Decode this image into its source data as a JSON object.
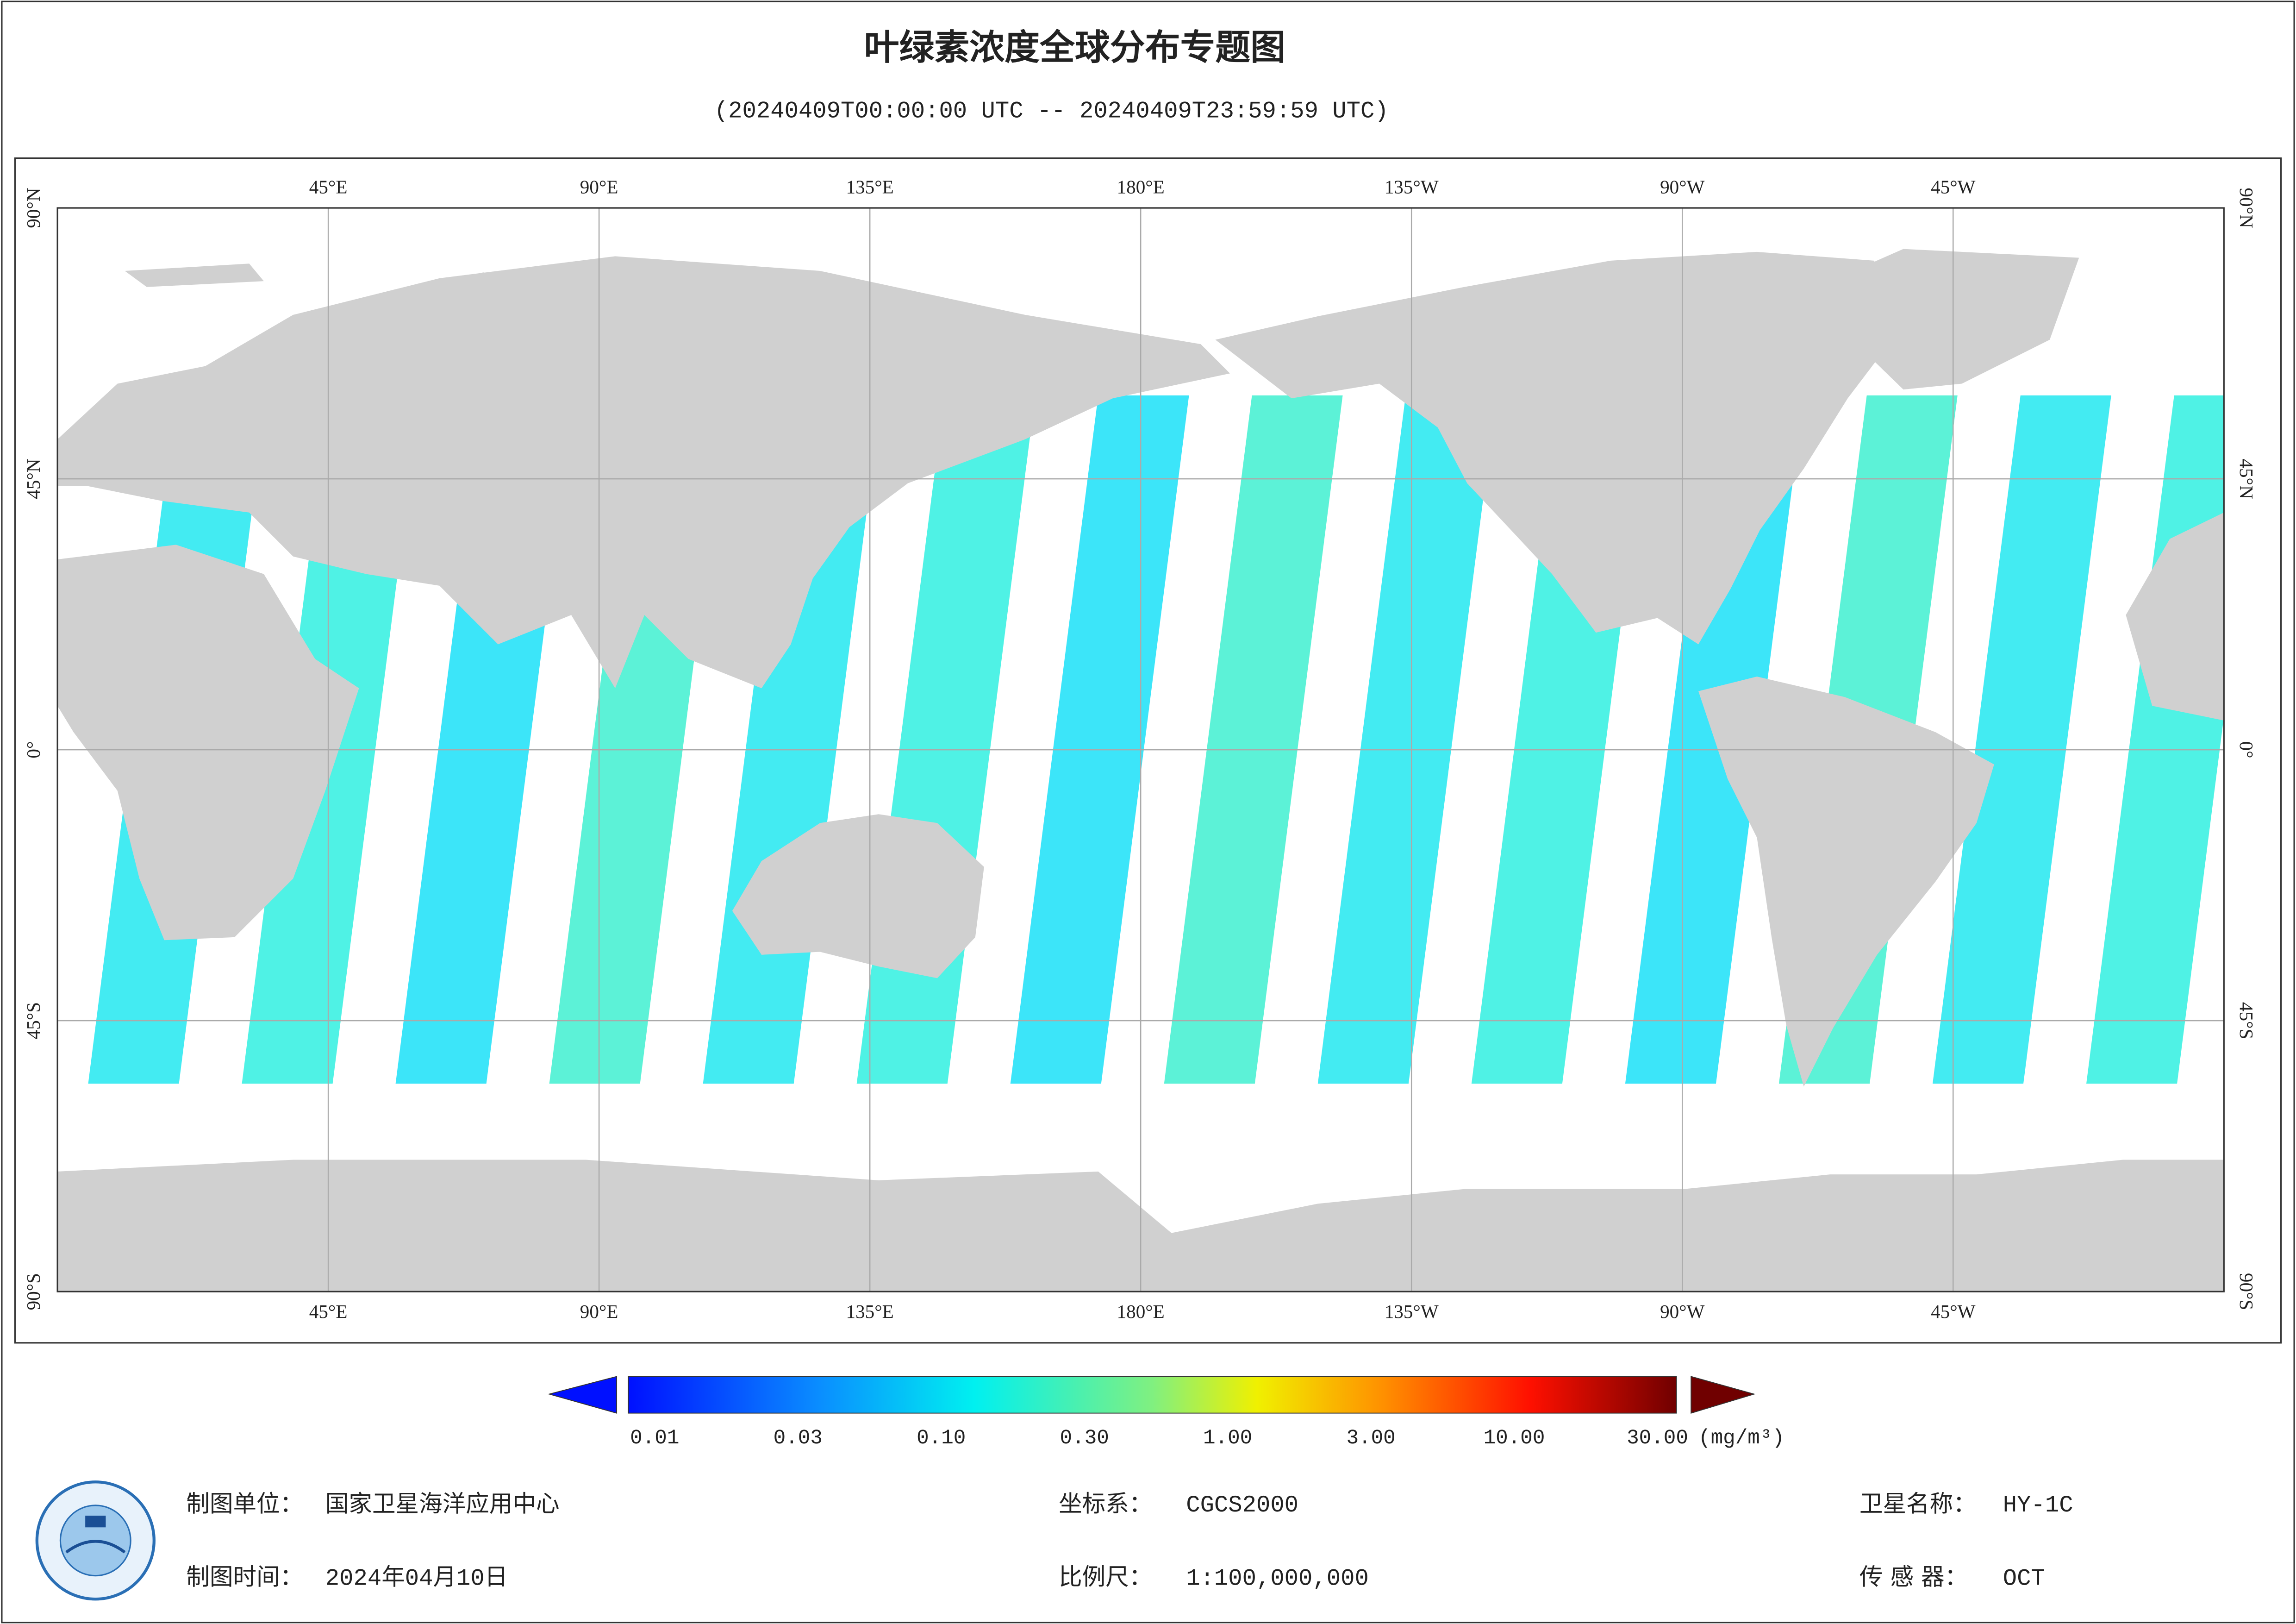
{
  "title": "叶绿素浓度全球分布专题图",
  "subtitle": "(20240409T00:00:00 UTC -- 20240409T23:59:59 UTC)",
  "map": {
    "lon_labels": [
      "45°E",
      "90°E",
      "135°E",
      "180°E",
      "135°W",
      "90°W",
      "45°W"
    ],
    "lat_labels": [
      "90°N",
      "45°N",
      "0°",
      "45°S",
      "90°S"
    ]
  },
  "colorbar": {
    "labels": [
      "0.01",
      "0.03",
      "0.10",
      "0.30",
      "1.00",
      "3.00",
      "10.00",
      "30.00"
    ],
    "unit": "(mg/m³)"
  },
  "footer": {
    "unit": {
      "label": "制图单位：",
      "value": "国家卫星海洋应用中心"
    },
    "date": {
      "label": "制图时间：",
      "value": "2024年04月10日"
    },
    "crs": {
      "label": "坐标系：",
      "value": "CGCS2000"
    },
    "scale": {
      "label": "比例尺：",
      "value": "1:100,000,000"
    },
    "satellite": {
      "label": "卫星名称：",
      "value": "HY-1C"
    },
    "sensor": {
      "label": "传 感 器：",
      "value": "OCT"
    }
  }
}
